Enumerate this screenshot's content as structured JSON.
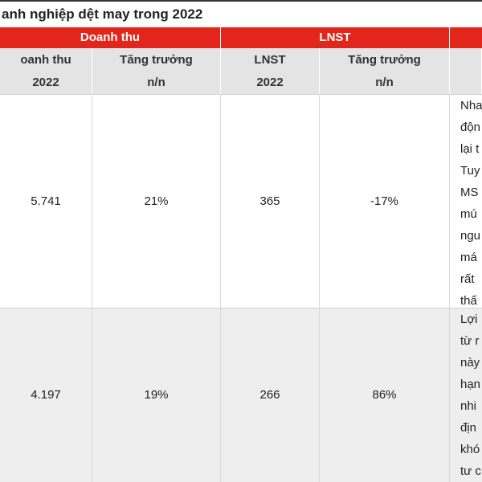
{
  "header": {
    "title": "anh nghiệp dệt may trong 2022"
  },
  "table": {
    "group_headers": [
      "Doanh thu",
      "LNST"
    ],
    "columns": [
      [
        "oanh thu",
        "2022"
      ],
      [
        "Tăng trưởng",
        "n/n"
      ],
      [
        "LNST",
        "2022"
      ],
      [
        "Tăng trưởng",
        "n/n"
      ]
    ],
    "rows": [
      {
        "cells": [
          "5.741",
          "21%",
          "365",
          "-17%"
        ],
        "note": [
          "Nha",
          "độn",
          "lại t",
          "Tuy",
          "MS",
          "mú",
          "ngu",
          "má",
          "rất",
          "thấ"
        ]
      },
      {
        "cells": [
          "4.197",
          "19%",
          "266",
          "86%"
        ],
        "note": [
          "Lợi",
          "từ r",
          "này",
          "hạn",
          "nhi",
          "địn",
          "khó",
          "tư c"
        ]
      }
    ]
  }
}
